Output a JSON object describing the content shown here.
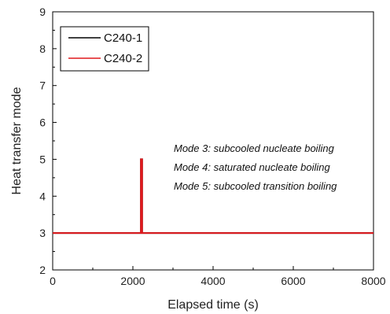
{
  "chart_data": {
    "type": "line",
    "title": "",
    "xlabel": "Elapsed time (s)",
    "ylabel": "Heat transfer mode",
    "xlim": [
      0,
      8000
    ],
    "ylim": [
      2,
      9
    ],
    "xticks": [
      0,
      2000,
      4000,
      6000,
      8000
    ],
    "yticks": [
      2,
      3,
      4,
      5,
      6,
      7,
      8,
      9
    ],
    "grid": false,
    "legend": {
      "placement": "top-left",
      "entries": [
        "C240-1",
        "C240-2"
      ]
    },
    "series": [
      {
        "name": "C240-1",
        "color": "#000000",
        "x": [
          0,
          2200,
          2200,
          2230,
          2230,
          8000
        ],
        "y": [
          3,
          3,
          5,
          5,
          3,
          3
        ]
      },
      {
        "name": "C240-2",
        "color": "#e0191d",
        "x": [
          0,
          2200,
          2200,
          2230,
          2230,
          8000
        ],
        "y": [
          3,
          3,
          5,
          5,
          3,
          3
        ]
      }
    ],
    "annotations": [
      "Mode 3: subcooled nucleate boiling",
      "Mode 4: saturated nucleate boiling",
      "Mode 5: subcooled transition boiling"
    ]
  }
}
